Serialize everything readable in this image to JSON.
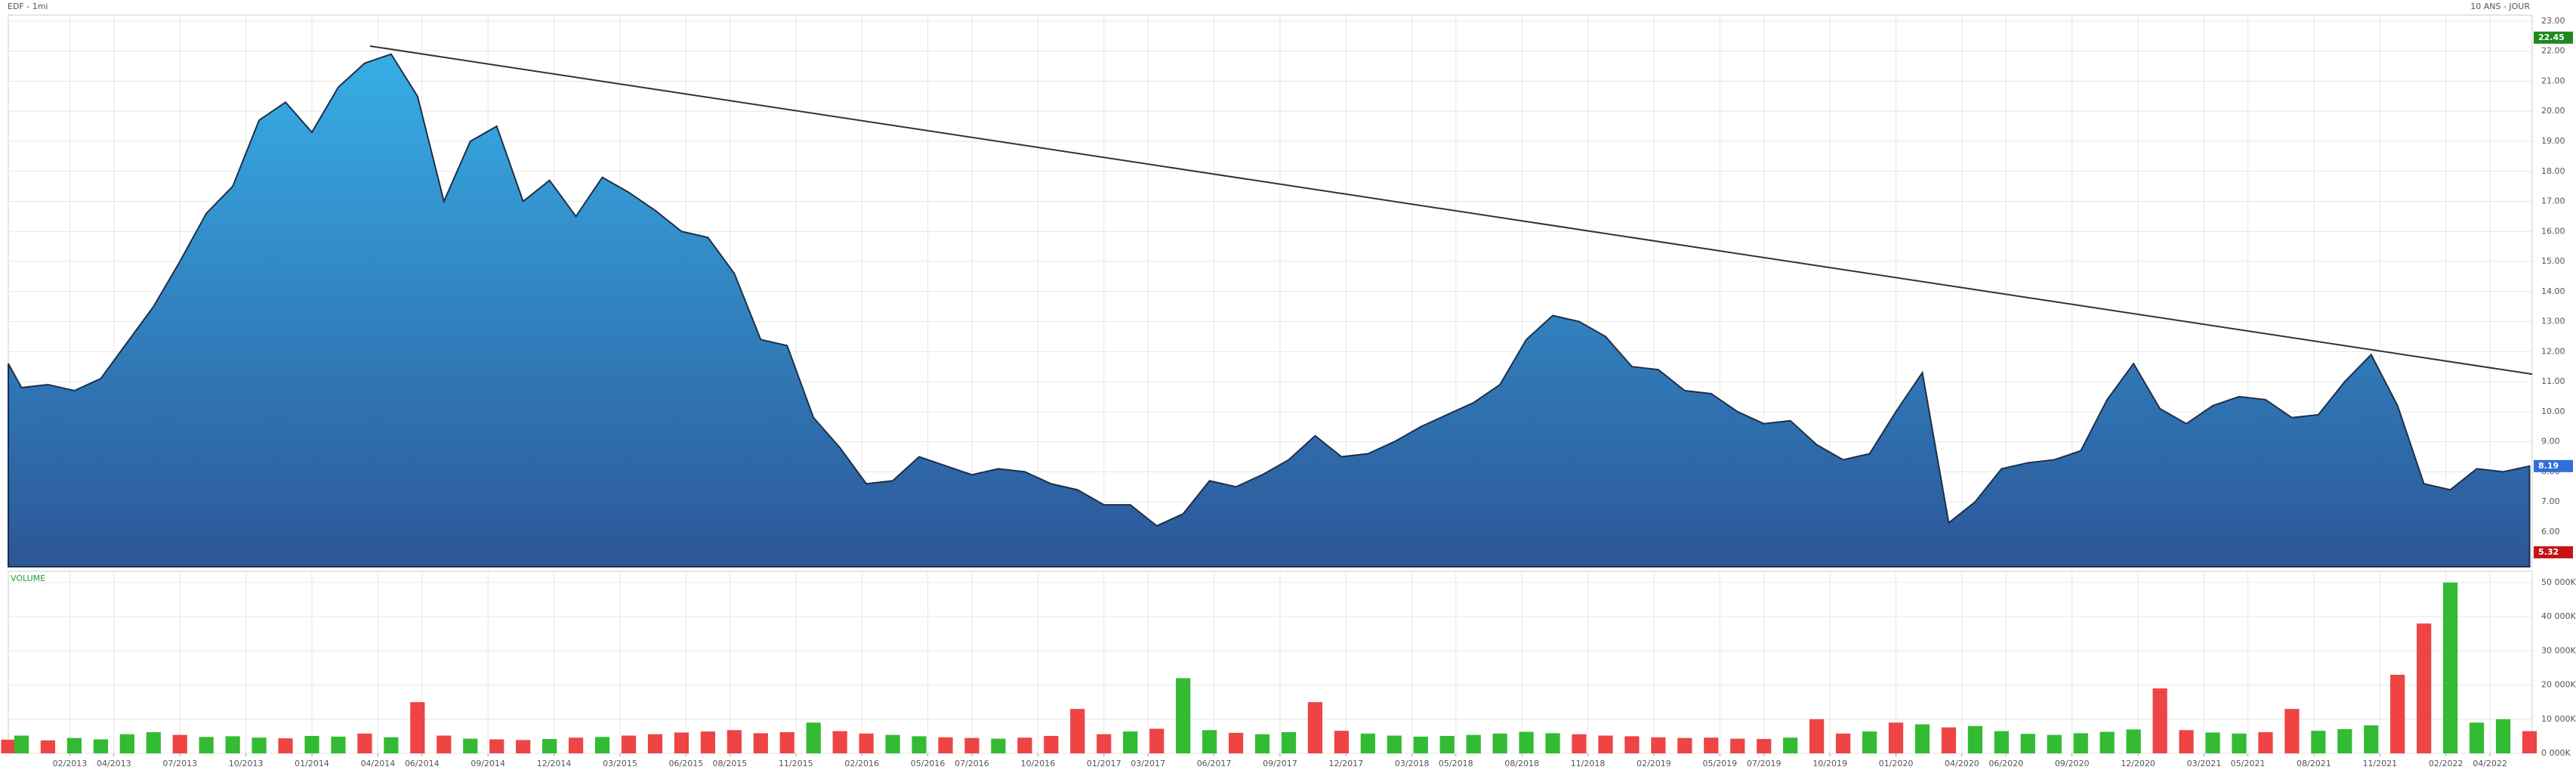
{
  "chart_data": {
    "type": "area",
    "title": "EDF - 1mi",
    "subtitle": "10 ANS - JOUR",
    "xlim": [
      2012.85,
      2022.41
    ],
    "xticks": [
      {
        "value": 2013.083,
        "label": "02/2013"
      },
      {
        "value": 2013.25,
        "label": "04/2013"
      },
      {
        "value": 2013.5,
        "label": "07/2013"
      },
      {
        "value": 2013.75,
        "label": "10/2013"
      },
      {
        "value": 2014,
        "label": "01/2014"
      },
      {
        "value": 2014.25,
        "label": "04/2014"
      },
      {
        "value": 2014.417,
        "label": "06/2014"
      },
      {
        "value": 2014.667,
        "label": "09/2014"
      },
      {
        "value": 2014.917,
        "label": "12/2014"
      },
      {
        "value": 2015.167,
        "label": "03/2015"
      },
      {
        "value": 2015.417,
        "label": "06/2015"
      },
      {
        "value": 2015.583,
        "label": "08/2015"
      },
      {
        "value": 2015.833,
        "label": "11/2015"
      },
      {
        "value": 2016.083,
        "label": "02/2016"
      },
      {
        "value": 2016.333,
        "label": "05/2016"
      },
      {
        "value": 2016.5,
        "label": "07/2016"
      },
      {
        "value": 2016.75,
        "label": "10/2016"
      },
      {
        "value": 2017,
        "label": "01/2017"
      },
      {
        "value": 2017.167,
        "label": "03/2017"
      },
      {
        "value": 2017.417,
        "label": "06/2017"
      },
      {
        "value": 2017.667,
        "label": "09/2017"
      },
      {
        "value": 2017.917,
        "label": "12/2017"
      },
      {
        "value": 2018.167,
        "label": "03/2018"
      },
      {
        "value": 2018.333,
        "label": "05/2018"
      },
      {
        "value": 2018.583,
        "label": "08/2018"
      },
      {
        "value": 2018.833,
        "label": "11/2018"
      },
      {
        "value": 2019.083,
        "label": "02/2019"
      },
      {
        "value": 2019.333,
        "label": "05/2019"
      },
      {
        "value": 2019.5,
        "label": "07/2019"
      },
      {
        "value": 2019.75,
        "label": "10/2019"
      },
      {
        "value": 2020,
        "label": "01/2020"
      },
      {
        "value": 2020.25,
        "label": "04/2020"
      },
      {
        "value": 2020.417,
        "label": "06/2020"
      },
      {
        "value": 2020.667,
        "label": "09/2020"
      },
      {
        "value": 2020.917,
        "label": "12/2020"
      },
      {
        "value": 2021.167,
        "label": "03/2021"
      },
      {
        "value": 2021.333,
        "label": "05/2021"
      },
      {
        "value": 2021.583,
        "label": "08/2021"
      },
      {
        "value": 2021.833,
        "label": "11/2021"
      },
      {
        "value": 2022.083,
        "label": "02/2022"
      },
      {
        "value": 2022.25,
        "label": "04/2022"
      }
    ],
    "ylim": [
      4.84,
      23.2
    ],
    "yticks": [
      {
        "value": 6,
        "label": "6.00"
      },
      {
        "value": 7,
        "label": "7.00"
      },
      {
        "value": 8,
        "label": "8.00"
      },
      {
        "value": 9,
        "label": "9.00"
      },
      {
        "value": 10,
        "label": "10.00"
      },
      {
        "value": 11,
        "label": "11.00"
      },
      {
        "value": 12,
        "label": "12.00"
      },
      {
        "value": 13,
        "label": "13.00"
      },
      {
        "value": 14,
        "label": "14.00"
      },
      {
        "value": 15,
        "label": "15.00"
      },
      {
        "value": 16,
        "label": "16.00"
      },
      {
        "value": 17,
        "label": "17.00"
      },
      {
        "value": 18,
        "label": "18.00"
      },
      {
        "value": 19,
        "label": "19.00"
      },
      {
        "value": 20,
        "label": "20.00"
      },
      {
        "value": 21,
        "label": "21.00"
      },
      {
        "value": 22,
        "label": "22.00"
      },
      {
        "value": 23,
        "label": "23.00"
      }
    ],
    "grid": true,
    "x": [
      2012.85,
      2012.9,
      2013.0,
      2013.1,
      2013.2,
      2013.3,
      2013.4,
      2013.5,
      2013.6,
      2013.7,
      2013.8,
      2013.9,
      2014.0,
      2014.1,
      2014.2,
      2014.3,
      2014.4,
      2014.5,
      2014.6,
      2014.7,
      2014.8,
      2014.9,
      2015.0,
      2015.1,
      2015.2,
      2015.3,
      2015.4,
      2015.5,
      2015.6,
      2015.7,
      2015.8,
      2015.9,
      2016.0,
      2016.1,
      2016.2,
      2016.3,
      2016.4,
      2016.5,
      2016.6,
      2016.7,
      2016.8,
      2016.9,
      2017.0,
      2017.1,
      2017.2,
      2017.3,
      2017.4,
      2017.5,
      2017.6,
      2017.7,
      2017.8,
      2017.9,
      2018.0,
      2018.1,
      2018.2,
      2018.3,
      2018.4,
      2018.5,
      2018.6,
      2018.7,
      2018.8,
      2018.9,
      2019.0,
      2019.1,
      2019.2,
      2019.3,
      2019.4,
      2019.5,
      2019.6,
      2019.7,
      2019.8,
      2019.9,
      2020.0,
      2020.1,
      2020.2,
      2020.3,
      2020.4,
      2020.5,
      2020.6,
      2020.7,
      2020.8,
      2020.9,
      2021.0,
      2021.1,
      2021.2,
      2021.3,
      2021.4,
      2021.5,
      2021.6,
      2021.7,
      2021.8,
      2021.9,
      2022.0,
      2022.1,
      2022.2,
      2022.3,
      2022.4
    ],
    "values": [
      11.6,
      10.8,
      10.9,
      10.7,
      11.1,
      12.3,
      13.5,
      15.0,
      16.6,
      17.5,
      19.7,
      20.3,
      19.3,
      20.8,
      21.6,
      21.9,
      20.5,
      17.0,
      19.0,
      19.5,
      17.0,
      17.7,
      16.5,
      17.8,
      17.3,
      16.7,
      16.0,
      15.8,
      14.6,
      12.4,
      12.2,
      9.8,
      8.8,
      7.6,
      7.7,
      8.5,
      8.2,
      7.9,
      8.1,
      8.0,
      7.6,
      7.4,
      6.9,
      6.9,
      6.2,
      6.6,
      7.7,
      7.5,
      7.9,
      8.4,
      9.2,
      8.5,
      8.6,
      9.0,
      9.5,
      9.9,
      10.3,
      10.9,
      12.4,
      13.2,
      13.0,
      12.5,
      11.5,
      11.4,
      10.7,
      10.6,
      10.0,
      9.6,
      9.7,
      8.9,
      8.4,
      8.6,
      10.0,
      11.3,
      6.3,
      7.0,
      8.1,
      8.3,
      8.4,
      8.7,
      10.4,
      11.6,
      10.1,
      9.6,
      10.2,
      10.5,
      10.4,
      9.8,
      9.9,
      11.0,
      11.9,
      10.2,
      7.6,
      7.4,
      8.1,
      8.0,
      8.19
    ],
    "color": "#2f7fc8",
    "trendline": {
      "x": [
        2014.22,
        2022.41
      ],
      "values": [
        22.17,
        11.25
      ],
      "color": "#333333"
    },
    "price_badges": [
      {
        "value": 22.45,
        "color": "#1c8a1c"
      },
      {
        "value": 8.19,
        "color": "#2f6fd6"
      },
      {
        "value": 5.32,
        "color": "#c41414"
      }
    ],
    "volume": {
      "label": "VOLUME",
      "ylim": [
        0,
        53300
      ],
      "yticks": [
        {
          "value": 0,
          "label": "0 000K"
        },
        {
          "value": 10000,
          "label": "10 000K"
        },
        {
          "value": 20000,
          "label": "20 000K"
        },
        {
          "value": 30000,
          "label": "30 000K"
        },
        {
          "value": 40000,
          "label": "40 000K"
        },
        {
          "value": 50000,
          "label": "50 000K"
        }
      ],
      "values": [
        4000,
        5200,
        3800,
        4500,
        4100,
        5600,
        6200,
        5400,
        4800,
        5000,
        4600,
        4400,
        5100,
        4900,
        5800,
        4700,
        15000,
        5200,
        4300,
        4100,
        3900,
        4200,
        4600,
        4800,
        5200,
        5600,
        6100,
        6400,
        6800,
        5900,
        6200,
        9000,
        6500,
        5800,
        5400,
        5000,
        4700,
        4500,
        4300,
        4600,
        5100,
        13000,
        5600,
        6400,
        7200,
        22000,
        6800,
        6000,
        5600,
        6200,
        15000,
        6600,
        5800,
        5200,
        4900,
        5100,
        5400,
        5800,
        6300,
        5900,
        5600,
        5200,
        5000,
        4700,
        4500,
        4600,
        4300,
        4200,
        4600,
        10000,
        5800,
        6400,
        9000,
        8500,
        7600,
        8000,
        6500,
        5700,
        5400,
        5900,
        6300,
        7000,
        19000,
        6800,
        6100,
        5800,
        6200,
        13000,
        6600,
        7100,
        8200,
        23000,
        38000,
        50000,
        9000,
        10000,
        6500
      ],
      "colors": [
        "#e44",
        "#3b3",
        "#e44",
        "#3b3",
        "#3b3",
        "#3b3",
        "#3b3",
        "#e44",
        "#3b3",
        "#3b3",
        "#3b3",
        "#e44",
        "#3b3",
        "#3b3",
        "#e44",
        "#3b3",
        "#e44",
        "#e44",
        "#3b3",
        "#e44",
        "#e44",
        "#3b3",
        "#e44",
        "#3b3",
        "#e44",
        "#e44",
        "#e44",
        "#e44",
        "#e44",
        "#e44",
        "#e44",
        "#3b3",
        "#e44",
        "#e44",
        "#3b3",
        "#3b3",
        "#e44",
        "#e44",
        "#3b3",
        "#e44",
        "#e44",
        "#e44",
        "#e44",
        "#3b3",
        "#e44",
        "#3b3",
        "#3b3",
        "#e44",
        "#3b3",
        "#3b3",
        "#e44",
        "#e44",
        "#3b3",
        "#3b3",
        "#3b3",
        "#3b3",
        "#3b3",
        "#3b3",
        "#3b3",
        "#3b3",
        "#e44",
        "#e44",
        "#e44",
        "#e44",
        "#e44",
        "#e44",
        "#e44",
        "#e44",
        "#3b3",
        "#e44",
        "#e44",
        "#3b3",
        "#e44",
        "#3b3",
        "#e44",
        "#3b3",
        "#3b3",
        "#3b3",
        "#3b3",
        "#3b3",
        "#3b3",
        "#3b3",
        "#e44",
        "#e44",
        "#3b3",
        "#3b3",
        "#e44",
        "#e44",
        "#3b3",
        "#3b3",
        "#3b3",
        "#e44",
        "#e44",
        "#3b3",
        "#3b3",
        "#3b3",
        "#e44"
      ]
    }
  }
}
